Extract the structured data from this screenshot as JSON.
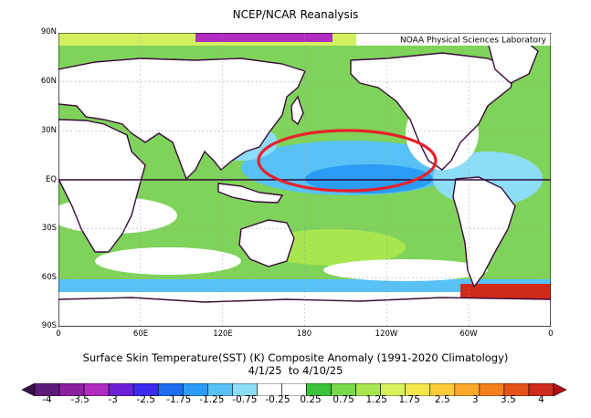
{
  "title": "NCEP/NCAR Reanalysis",
  "credit": "NOAA Physical Sciences Laboratory",
  "caption_line1": "Surface Skin Temperature(SST) (K) Composite Anomaly (1991-2020 Climatology)",
  "caption_line2": "4/1/25  to 4/10/25",
  "lat_labels": [
    "90N",
    "60N",
    "30N",
    "EQ",
    "30S",
    "60S",
    "90S"
  ],
  "lon_labels": [
    "0",
    "60E",
    "120E",
    "180",
    "120W",
    "60W",
    "0"
  ],
  "colorbar": {
    "tick_labels": [
      "-4",
      "-3.5",
      "-3",
      "-2.5",
      "-1.75",
      "-1.25",
      "-0.75",
      "-0.25",
      "0.25",
      "0.75",
      "1.25",
      "1.75",
      "2.5",
      "3",
      "3.5",
      "4"
    ],
    "colors": [
      "#3a0d4a",
      "#5e1a78",
      "#8a1fa0",
      "#b02cc0",
      "#6a1fd6",
      "#3c2cf0",
      "#1e6cf0",
      "#2a9cf5",
      "#58c2f7",
      "#8ddcf8",
      "#ffffff",
      "#ffffff",
      "#3ac43a",
      "#76d84a",
      "#a8e650",
      "#d8f05a",
      "#f2e64a",
      "#fccb38",
      "#f9a82a",
      "#f2801c",
      "#e4541a",
      "#d02a1a",
      "#b40f12"
    ]
  },
  "colors": {
    "land": "#ffffff",
    "coast": "#3a0a3a",
    "ocean_neutral": "#ffffff",
    "ocean_warm": "#5fcf3e",
    "ocean_cool": "#6fc8f0",
    "highlight_ring": "#e8202a"
  }
}
